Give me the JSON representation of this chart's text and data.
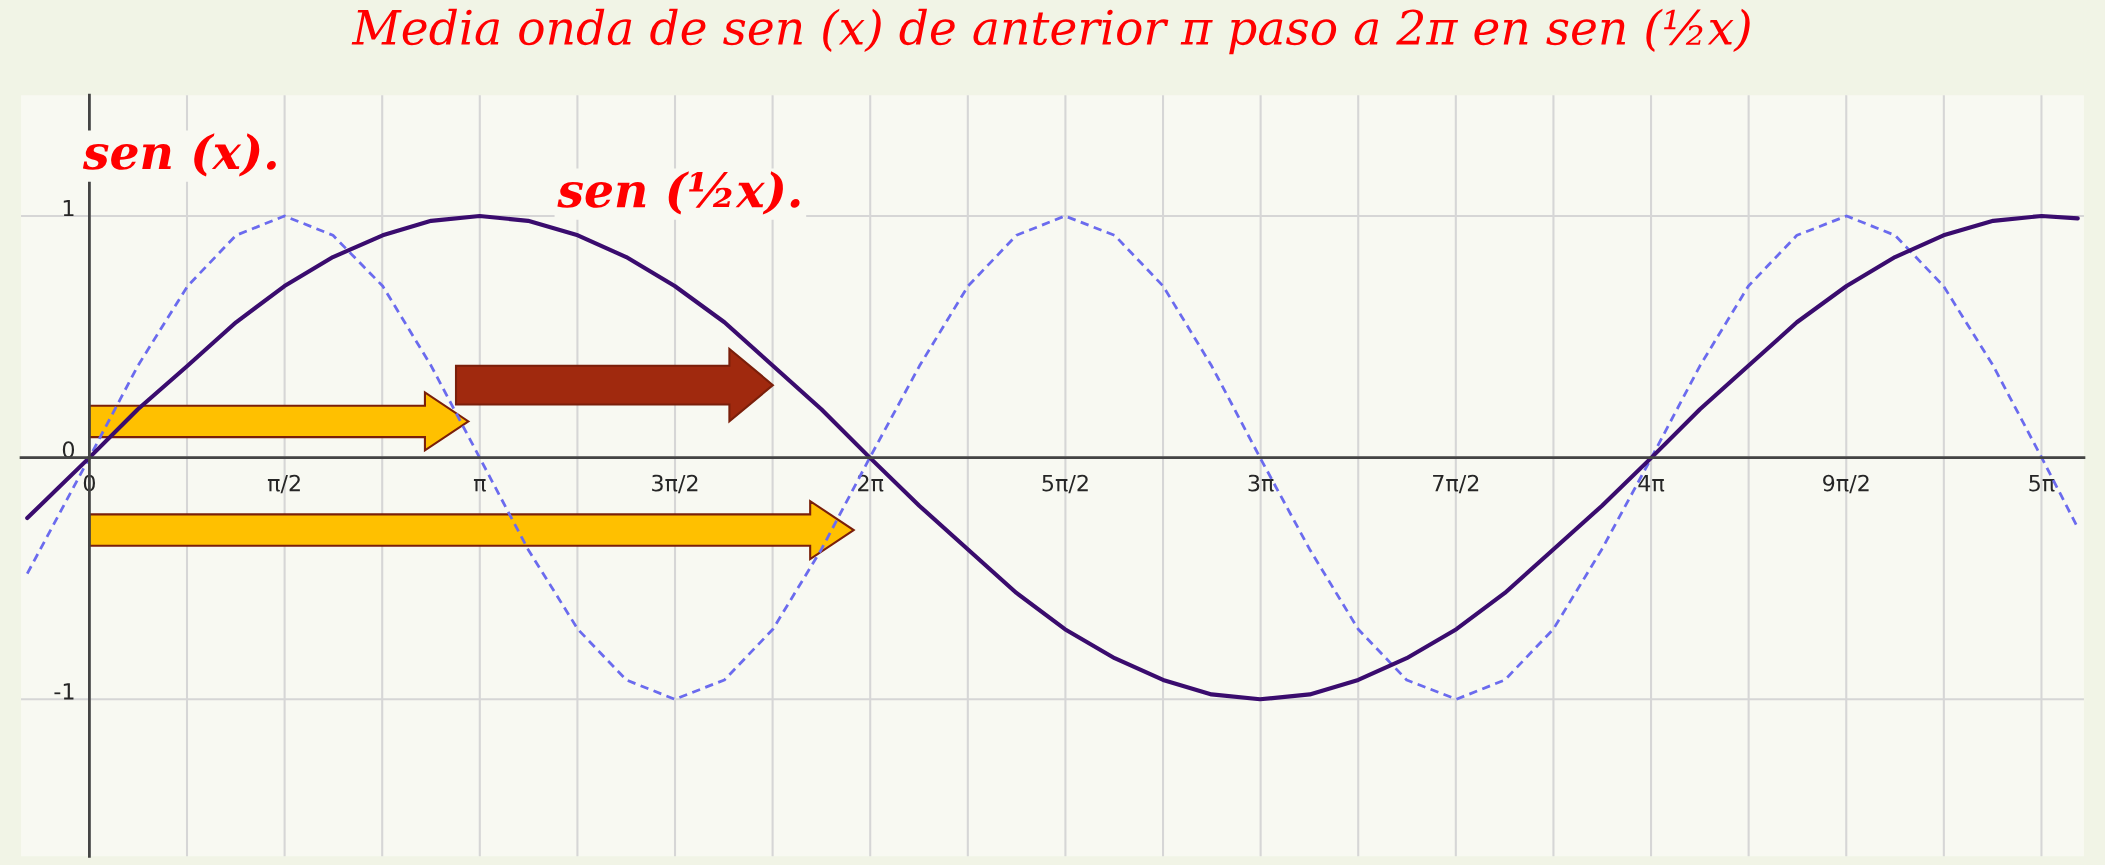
{
  "chart_data": {
    "type": "line",
    "title": "Media onda de sen (x) de anterior π paso a 2π en sen (½x)",
    "x": [
      -0.5,
      0,
      0.39,
      0.79,
      1.18,
      1.57,
      1.96,
      2.36,
      2.75,
      3.14,
      3.53,
      3.93,
      4.32,
      4.71,
      5.11,
      5.5,
      5.89,
      6.28,
      6.68,
      7.07,
      7.46,
      7.85,
      8.25,
      8.64,
      9.03,
      9.42,
      9.82,
      10.21,
      10.6,
      11.0,
      11.39,
      11.78,
      12.17,
      12.57,
      12.96,
      13.35,
      13.74,
      14.14,
      14.53,
      14.92,
      15.32,
      15.71,
      16.0
    ],
    "series": [
      {
        "name": "sen (x).",
        "color": "#6b6bee",
        "line_style": "dashed",
        "values": [
          -0.48,
          0,
          0.38,
          0.71,
          0.92,
          1,
          0.92,
          0.71,
          0.38,
          0,
          -0.38,
          -0.71,
          -0.92,
          -1,
          -0.92,
          -0.71,
          -0.38,
          0,
          0.38,
          0.71,
          0.92,
          1,
          0.92,
          0.71,
          0.38,
          0,
          -0.38,
          -0.71,
          -0.92,
          -1,
          -0.92,
          -0.71,
          -0.38,
          0,
          0.38,
          0.71,
          0.92,
          1,
          0.92,
          0.71,
          0.38,
          0,
          -0.29
        ]
      },
      {
        "name": "sen (½x).",
        "color": "#3a0c6e",
        "line_style": "solid",
        "values": [
          -0.25,
          0,
          0.2,
          0.38,
          0.56,
          0.71,
          0.83,
          0.92,
          0.98,
          1,
          0.98,
          0.92,
          0.83,
          0.71,
          0.56,
          0.38,
          0.2,
          0,
          -0.2,
          -0.38,
          -0.56,
          -0.71,
          -0.83,
          -0.92,
          -0.98,
          -1,
          -0.98,
          -0.92,
          -0.83,
          -0.71,
          -0.56,
          -0.38,
          -0.2,
          0,
          0.2,
          0.38,
          0.56,
          0.71,
          0.83,
          0.92,
          0.98,
          1,
          0.99
        ]
      }
    ],
    "xlim": [
      -0.55,
      16.05
    ],
    "ylim": [
      -1.65,
      1.5
    ],
    "xticks": [
      {
        "value": 0,
        "label": "0"
      },
      {
        "value": 0.7854,
        "label": null
      },
      {
        "value": 1.5708,
        "label": "π/2"
      },
      {
        "value": 2.3562,
        "label": null
      },
      {
        "value": 3.1416,
        "label": "π"
      },
      {
        "value": 3.927,
        "label": null
      },
      {
        "value": 4.7124,
        "label": "3π/2"
      },
      {
        "value": 5.4978,
        "label": null
      },
      {
        "value": 6.2832,
        "label": "2π"
      },
      {
        "value": 7.0686,
        "label": null
      },
      {
        "value": 7.854,
        "label": "5π/2"
      },
      {
        "value": 8.6394,
        "label": null
      },
      {
        "value": 9.4248,
        "label": "3π"
      },
      {
        "value": 10.2102,
        "label": null
      },
      {
        "value": 10.9956,
        "label": "7π/2"
      },
      {
        "value": 11.781,
        "label": null
      },
      {
        "value": 12.5664,
        "label": "4π"
      },
      {
        "value": 13.3518,
        "label": null
      },
      {
        "value": 14.1372,
        "label": "9π/2"
      },
      {
        "value": 14.9226,
        "label": null
      },
      {
        "value": 15.708,
        "label": "5π"
      }
    ],
    "yticks": [
      -1,
      0,
      1
    ],
    "grid": true,
    "legend": false,
    "marker": "none"
  }
}
